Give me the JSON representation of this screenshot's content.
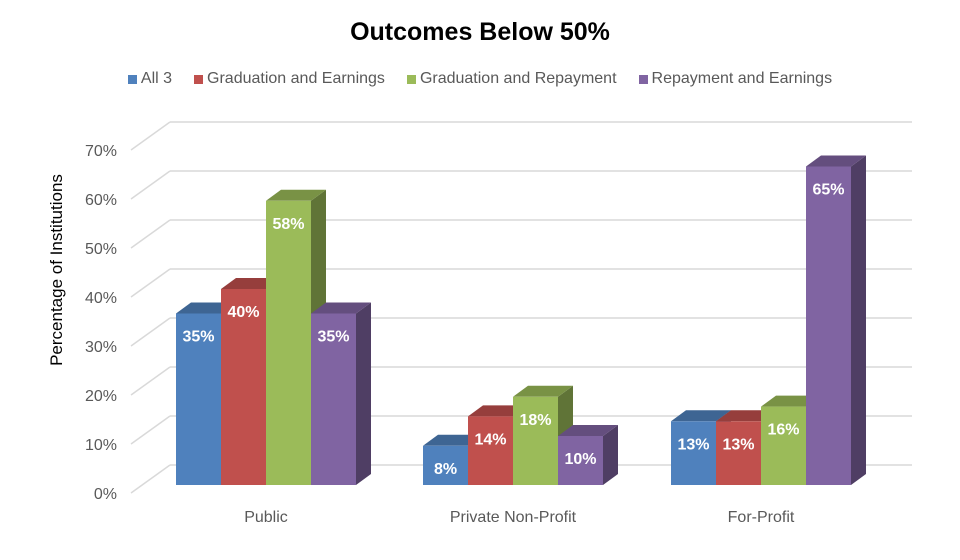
{
  "chart_data": {
    "type": "bar",
    "style": "3d-clustered-column",
    "title": "Outcomes Below 50%",
    "ylabel": "Percentage of Institutions",
    "xlabel": "",
    "categories": [
      "Public",
      "Private Non-Profit",
      "For-Profit"
    ],
    "ylim": [
      0,
      70
    ],
    "yticks": [
      "0%",
      "10%",
      "20%",
      "30%",
      "40%",
      "50%",
      "60%",
      "70%"
    ],
    "grid": true,
    "legend_position": "top",
    "series": [
      {
        "name": "All 3",
        "color": "#4f81bd",
        "values": [
          35,
          8,
          13
        ],
        "labels": [
          "35%",
          "8%",
          "13%"
        ]
      },
      {
        "name": "Graduation and Earnings",
        "color": "#c0504d",
        "values": [
          40,
          14,
          13
        ],
        "labels": [
          "40%",
          "14%",
          "13%"
        ]
      },
      {
        "name": "Graduation and Repayment",
        "color": "#9bbb59",
        "values": [
          58,
          18,
          16
        ],
        "labels": [
          "58%",
          "18%",
          "16%"
        ]
      },
      {
        "name": "Repayment and Earnings",
        "color": "#8064a2",
        "values": [
          35,
          10,
          65
        ],
        "labels": [
          "35%",
          "10%",
          "65%"
        ]
      }
    ]
  }
}
